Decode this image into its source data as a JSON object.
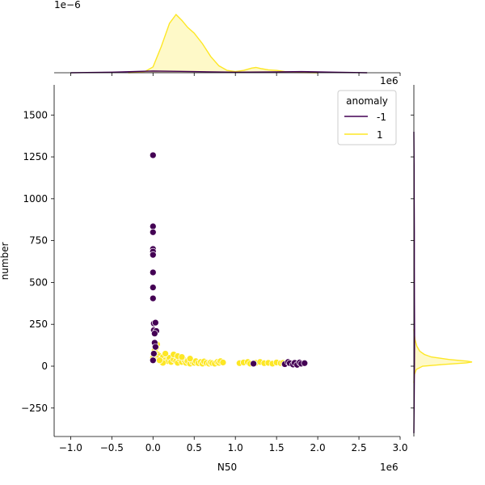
{
  "chart_data": {
    "type": "scatter",
    "title": "",
    "xlabel": "N50",
    "ylabel": "number",
    "x_offset_label": "1e6",
    "y_offset_label_right": "1e6",
    "top_marginal_offset_label": "1e−6",
    "xlim": [
      -1.2,
      3.0
    ],
    "ylim": [
      -420,
      1680
    ],
    "x_ticks": [
      -1.0,
      -0.5,
      0.0,
      0.5,
      1.0,
      1.5,
      2.0,
      2.5,
      3.0
    ],
    "x_tick_labels": [
      "−1.0",
      "−0.5",
      "0.0",
      "0.5",
      "1.0",
      "1.5",
      "2.0",
      "2.5",
      "3.0"
    ],
    "y_ticks": [
      -250,
      0,
      250,
      500,
      750,
      1000,
      1250,
      1500
    ],
    "y_tick_labels": [
      "−250",
      "0",
      "250",
      "500",
      "750",
      "1000",
      "1250",
      "1500"
    ],
    "grid": false,
    "legend": {
      "title": "anomaly",
      "placement": "top-right",
      "entries": [
        {
          "label": "-1",
          "color": "#440154"
        },
        {
          "label": "1",
          "color": "#fde725"
        }
      ]
    },
    "series": [
      {
        "name": "-1",
        "color": "#440154",
        "points": [
          [
            0.0,
            1260
          ],
          [
            0.0,
            835
          ],
          [
            0.0,
            800
          ],
          [
            0.0,
            700
          ],
          [
            0.0,
            685
          ],
          [
            0.0,
            665
          ],
          [
            0.0,
            560
          ],
          [
            0.0,
            470
          ],
          [
            0.0,
            405
          ],
          [
            0.01,
            255
          ],
          [
            0.03,
            260
          ],
          [
            0.01,
            215
          ],
          [
            0.04,
            210
          ],
          [
            0.02,
            195
          ],
          [
            0.02,
            140
          ],
          [
            0.03,
            115
          ],
          [
            0.01,
            75
          ],
          [
            0.0,
            35
          ],
          [
            1.22,
            15
          ],
          [
            1.6,
            12
          ],
          [
            1.64,
            25
          ],
          [
            1.66,
            18
          ],
          [
            1.7,
            10
          ],
          [
            1.72,
            20
          ],
          [
            1.75,
            8
          ],
          [
            1.78,
            22
          ],
          [
            1.8,
            15
          ],
          [
            1.84,
            18
          ]
        ]
      },
      {
        "name": "1",
        "color": "#fde725",
        "points": [
          [
            0.05,
            130
          ],
          [
            0.04,
            110
          ],
          [
            0.03,
            85
          ],
          [
            0.06,
            70
          ],
          [
            0.08,
            60
          ],
          [
            0.05,
            45
          ],
          [
            0.1,
            40
          ],
          [
            0.12,
            55
          ],
          [
            0.15,
            35
          ],
          [
            0.18,
            30
          ],
          [
            0.2,
            50
          ],
          [
            0.22,
            25
          ],
          [
            0.25,
            40
          ],
          [
            0.28,
            30
          ],
          [
            0.3,
            20
          ],
          [
            0.32,
            45
          ],
          [
            0.35,
            25
          ],
          [
            0.38,
            35
          ],
          [
            0.4,
            20
          ],
          [
            0.42,
            30
          ],
          [
            0.45,
            15
          ],
          [
            0.48,
            25
          ],
          [
            0.5,
            20
          ],
          [
            0.52,
            30
          ],
          [
            0.55,
            18
          ],
          [
            0.58,
            25
          ],
          [
            0.6,
            15
          ],
          [
            0.62,
            28
          ],
          [
            0.65,
            20
          ],
          [
            0.68,
            15
          ],
          [
            0.7,
            22
          ],
          [
            0.72,
            18
          ],
          [
            0.75,
            15
          ],
          [
            0.78,
            25
          ],
          [
            0.8,
            20
          ],
          [
            0.82,
            30
          ],
          [
            0.85,
            22
          ],
          [
            0.15,
            75
          ],
          [
            0.25,
            70
          ],
          [
            0.3,
            60
          ],
          [
            0.12,
            20
          ],
          [
            0.08,
            35
          ],
          [
            0.35,
            55
          ],
          [
            0.45,
            45
          ],
          [
            1.05,
            18
          ],
          [
            1.1,
            22
          ],
          [
            1.15,
            25
          ],
          [
            1.18,
            15
          ],
          [
            1.25,
            20
          ],
          [
            1.3,
            25
          ],
          [
            1.35,
            18
          ],
          [
            1.4,
            20
          ],
          [
            1.45,
            15
          ],
          [
            1.5,
            22
          ],
          [
            1.55,
            18
          ],
          [
            1.58,
            20
          ],
          [
            0.0,
            50
          ],
          [
            0.02,
            95
          ]
        ]
      }
    ],
    "top_marginal": {
      "type": "kde",
      "series": [
        {
          "name": "1",
          "color": "#fde725",
          "x": [
            -0.3,
            -0.1,
            0.0,
            0.1,
            0.2,
            0.28,
            0.35,
            0.42,
            0.5,
            0.6,
            0.7,
            0.8,
            0.9,
            1.0,
            1.1,
            1.2,
            1.25,
            1.32,
            1.4,
            1.5,
            1.6,
            1.8,
            2.0
          ],
          "y": [
            0.0,
            0.02,
            0.1,
            0.45,
            0.85,
            1.0,
            0.9,
            0.78,
            0.68,
            0.5,
            0.28,
            0.12,
            0.04,
            0.02,
            0.04,
            0.08,
            0.09,
            0.07,
            0.05,
            0.04,
            0.02,
            0.005,
            0.0
          ]
        },
        {
          "name": "-1",
          "color": "#440154",
          "x": [
            -1.0,
            -0.5,
            0.0,
            0.5,
            1.0,
            1.5,
            1.8,
            2.2,
            2.6
          ],
          "y": [
            0.0,
            0.01,
            0.03,
            0.02,
            0.01,
            0.015,
            0.02,
            0.01,
            0.0
          ]
        }
      ]
    },
    "right_marginal": {
      "type": "kde",
      "series": [
        {
          "name": "1",
          "color": "#fde725",
          "y": [
            -100,
            -50,
            -20,
            0,
            10,
            20,
            25,
            30,
            40,
            55,
            70,
            90,
            120,
            160,
            220
          ],
          "x": [
            0.0,
            0.01,
            0.04,
            0.15,
            0.5,
            0.9,
            1.0,
            0.92,
            0.6,
            0.3,
            0.18,
            0.1,
            0.05,
            0.02,
            0.0
          ]
        },
        {
          "name": "-1",
          "color": "#440154",
          "y": [
            -400,
            -200,
            0,
            200,
            400,
            600,
            800,
            1000,
            1200,
            1400
          ],
          "x": [
            0.0,
            0.005,
            0.01,
            0.012,
            0.01,
            0.009,
            0.008,
            0.006,
            0.004,
            0.0
          ]
        }
      ]
    }
  }
}
